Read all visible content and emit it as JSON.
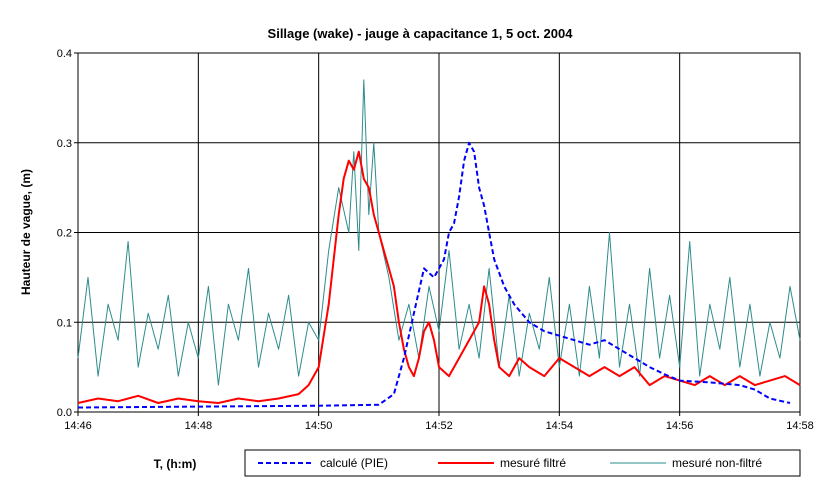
{
  "chart_data": {
    "type": "line",
    "title": "Sillage (wake) - jauge à capacitance 1, 5 oct. 2004",
    "xlabel": "T, (h:m)",
    "ylabel": "Hauteur de vague, (m)",
    "x_ticks": [
      "14:46",
      "14:48",
      "14:50",
      "14:52",
      "14:54",
      "14:56",
      "14:58"
    ],
    "y_ticks": [
      "0.0",
      "0.1",
      "0.2",
      "0.3",
      "0.4"
    ],
    "xlim": [
      "14:46",
      "14:58"
    ],
    "ylim": [
      0,
      0.4
    ],
    "grid": true,
    "legend_position": "bottom",
    "series": [
      {
        "name": "calculé (PIE)",
        "color": "#0000ff",
        "style": "dashed",
        "x": [
          "14:46:00",
          "14:48:00",
          "14:50:00",
          "14:51:00",
          "14:51:15",
          "14:51:25",
          "14:51:35",
          "14:51:45",
          "14:51:55",
          "14:52:05",
          "14:52:10",
          "14:52:15",
          "14:52:20",
          "14:52:25",
          "14:52:30",
          "14:52:35",
          "14:52:40",
          "14:52:45",
          "14:52:50",
          "14:52:55",
          "14:53:05",
          "14:53:15",
          "14:53:30",
          "14:53:45",
          "14:54:00",
          "14:54:15",
          "14:54:30",
          "14:54:45",
          "14:55:00",
          "14:55:15",
          "14:55:30",
          "14:55:45",
          "14:56:00",
          "14:56:30",
          "14:57:00",
          "14:57:15",
          "14:57:30",
          "14:57:50"
        ],
        "values": [
          0.005,
          0.006,
          0.007,
          0.008,
          0.02,
          0.06,
          0.11,
          0.16,
          0.15,
          0.17,
          0.2,
          0.21,
          0.24,
          0.28,
          0.3,
          0.29,
          0.25,
          0.23,
          0.2,
          0.17,
          0.14,
          0.12,
          0.1,
          0.09,
          0.085,
          0.08,
          0.075,
          0.08,
          0.07,
          0.06,
          0.05,
          0.042,
          0.035,
          0.033,
          0.03,
          0.025,
          0.015,
          0.01
        ]
      },
      {
        "name": "mesuré filtré",
        "color": "#ff0000",
        "style": "solid",
        "x": [
          "14:46:00",
          "14:46:20",
          "14:46:40",
          "14:47:00",
          "14:47:20",
          "14:47:40",
          "14:48:00",
          "14:48:20",
          "14:48:40",
          "14:49:00",
          "14:49:20",
          "14:49:40",
          "14:49:50",
          "14:50:00",
          "14:50:10",
          "14:50:20",
          "14:50:25",
          "14:50:30",
          "14:50:35",
          "14:50:40",
          "14:50:45",
          "14:50:50",
          "14:50:55",
          "14:51:00",
          "14:51:05",
          "14:51:10",
          "14:51:15",
          "14:51:20",
          "14:51:25",
          "14:51:30",
          "14:51:35",
          "14:51:40",
          "14:51:45",
          "14:51:50",
          "14:51:55",
          "14:52:00",
          "14:52:10",
          "14:52:20",
          "14:52:30",
          "14:52:40",
          "14:52:45",
          "14:52:50",
          "14:52:55",
          "14:53:00",
          "14:53:10",
          "14:53:20",
          "14:53:30",
          "14:53:45",
          "14:54:00",
          "14:54:15",
          "14:54:30",
          "14:54:45",
          "14:55:00",
          "14:55:15",
          "14:55:30",
          "14:55:45",
          "14:56:00",
          "14:56:15",
          "14:56:30",
          "14:56:45",
          "14:57:00",
          "14:57:15",
          "14:57:30",
          "14:57:45",
          "14:58:00"
        ],
        "values": [
          0.01,
          0.015,
          0.012,
          0.018,
          0.01,
          0.015,
          0.012,
          0.01,
          0.015,
          0.012,
          0.015,
          0.02,
          0.03,
          0.05,
          0.12,
          0.22,
          0.26,
          0.28,
          0.27,
          0.29,
          0.26,
          0.25,
          0.22,
          0.2,
          0.18,
          0.16,
          0.14,
          0.1,
          0.07,
          0.05,
          0.04,
          0.06,
          0.09,
          0.1,
          0.08,
          0.05,
          0.04,
          0.06,
          0.08,
          0.1,
          0.14,
          0.12,
          0.08,
          0.05,
          0.04,
          0.06,
          0.05,
          0.04,
          0.06,
          0.05,
          0.04,
          0.05,
          0.04,
          0.05,
          0.03,
          0.04,
          0.035,
          0.03,
          0.04,
          0.03,
          0.04,
          0.03,
          0.035,
          0.04,
          0.03
        ]
      },
      {
        "name": "mesuré non-filtré",
        "color": "#2e8b8b",
        "style": "solid",
        "x": [
          "14:46:00",
          "14:46:10",
          "14:46:20",
          "14:46:30",
          "14:46:40",
          "14:46:50",
          "14:47:00",
          "14:47:10",
          "14:47:20",
          "14:47:30",
          "14:47:40",
          "14:47:50",
          "14:48:00",
          "14:48:10",
          "14:48:20",
          "14:48:30",
          "14:48:40",
          "14:48:50",
          "14:49:00",
          "14:49:10",
          "14:49:20",
          "14:49:30",
          "14:49:40",
          "14:49:50",
          "14:50:00",
          "14:50:10",
          "14:50:20",
          "14:50:30",
          "14:50:35",
          "14:50:40",
          "14:50:45",
          "14:50:50",
          "14:50:55",
          "14:51:00",
          "14:51:10",
          "14:51:20",
          "14:51:30",
          "14:51:40",
          "14:51:50",
          "14:52:00",
          "14:52:10",
          "14:52:20",
          "14:52:30",
          "14:52:40",
          "14:52:50",
          "14:53:00",
          "14:53:10",
          "14:53:20",
          "14:53:30",
          "14:53:40",
          "14:53:50",
          "14:54:00",
          "14:54:10",
          "14:54:20",
          "14:54:30",
          "14:54:40",
          "14:54:50",
          "14:55:00",
          "14:55:10",
          "14:55:20",
          "14:55:30",
          "14:55:40",
          "14:55:50",
          "14:56:00",
          "14:56:10",
          "14:56:20",
          "14:56:30",
          "14:56:40",
          "14:56:50",
          "14:57:00",
          "14:57:10",
          "14:57:20",
          "14:57:30",
          "14:57:40",
          "14:57:50",
          "14:58:00"
        ],
        "values": [
          0.06,
          0.15,
          0.04,
          0.12,
          0.08,
          0.19,
          0.05,
          0.11,
          0.07,
          0.13,
          0.04,
          0.1,
          0.06,
          0.14,
          0.03,
          0.12,
          0.08,
          0.16,
          0.05,
          0.11,
          0.07,
          0.13,
          0.04,
          0.1,
          0.08,
          0.18,
          0.25,
          0.2,
          0.29,
          0.18,
          0.37,
          0.22,
          0.3,
          0.2,
          0.15,
          0.08,
          0.12,
          0.06,
          0.14,
          0.09,
          0.18,
          0.07,
          0.12,
          0.06,
          0.16,
          0.05,
          0.13,
          0.04,
          0.11,
          0.07,
          0.15,
          0.05,
          0.12,
          0.04,
          0.14,
          0.06,
          0.2,
          0.05,
          0.12,
          0.04,
          0.16,
          0.06,
          0.13,
          0.05,
          0.19,
          0.04,
          0.12,
          0.07,
          0.15,
          0.05,
          0.12,
          0.04,
          0.1,
          0.06,
          0.14,
          0.08
        ]
      }
    ]
  }
}
